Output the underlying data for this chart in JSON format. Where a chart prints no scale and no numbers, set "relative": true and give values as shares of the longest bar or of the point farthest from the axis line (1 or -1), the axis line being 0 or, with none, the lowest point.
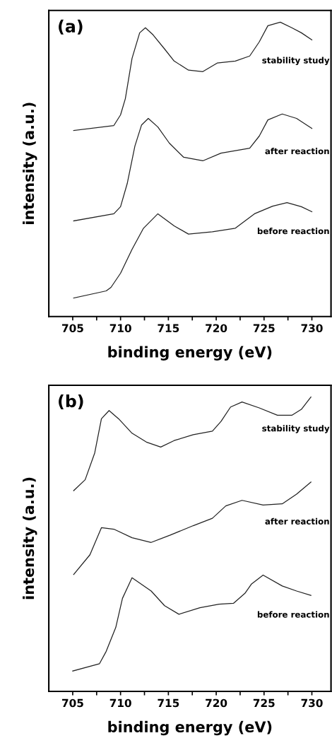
{
  "chart_data": [
    {
      "type": "line",
      "title": "(a)",
      "xlabel": "binding energy (eV)",
      "ylabel": "intensity (a.u.)",
      "relative": true,
      "xlim": [
        702.5,
        732
      ],
      "xticks": [
        705,
        {
          "value": 707.5,
          "label": null
        },
        710,
        {
          "value": 712.5,
          "label": null
        },
        715,
        {
          "value": 717.5,
          "label": null
        },
        720,
        {
          "value": 722.5,
          "label": null
        },
        725,
        {
          "value": 727.5,
          "label": null
        },
        730
      ],
      "series": [
        {
          "name": "stability study",
          "color": "#222222",
          "x": [
            705.1,
            709.3,
            710.0,
            710.5,
            711.2,
            712.0,
            712.6,
            713.4,
            714.6,
            715.6,
            717.1,
            718.6,
            720.1,
            722.0,
            723.5,
            724.5,
            725.4,
            726.7,
            727.9,
            728.9,
            730.0
          ],
          "values": [
            0.632,
            0.649,
            0.685,
            0.74,
            0.877,
            0.964,
            0.981,
            0.957,
            0.909,
            0.868,
            0.837,
            0.832,
            0.861,
            0.868,
            0.885,
            0.933,
            0.988,
            1.0,
            0.981,
            0.964,
            0.94
          ]
        },
        {
          "name": "after reaction",
          "color": "#222222",
          "x": [
            705.1,
            709.3,
            710.0,
            710.7,
            711.5,
            712.2,
            712.9,
            713.9,
            715.1,
            716.6,
            718.6,
            720.5,
            723.5,
            724.5,
            725.4,
            726.9,
            728.4,
            730.0
          ],
          "values": [
            0.325,
            0.349,
            0.373,
            0.452,
            0.579,
            0.651,
            0.673,
            0.644,
            0.589,
            0.541,
            0.529,
            0.555,
            0.572,
            0.613,
            0.668,
            0.688,
            0.673,
            0.639
          ]
        },
        {
          "name": "before reaction",
          "color": "#222222",
          "x": [
            705.1,
            708.5,
            709.0,
            710.0,
            711.2,
            712.4,
            713.9,
            715.6,
            717.1,
            719.6,
            722.0,
            724.0,
            725.9,
            727.4,
            728.9,
            730.0
          ],
          "values": [
            0.063,
            0.087,
            0.099,
            0.147,
            0.228,
            0.3,
            0.349,
            0.308,
            0.28,
            0.288,
            0.3,
            0.349,
            0.375,
            0.387,
            0.373,
            0.356
          ]
        }
      ]
    },
    {
      "type": "line",
      "title": "(b)",
      "xlabel": "binding energy (eV)",
      "ylabel": "intensity (a.u.)",
      "relative": true,
      "xlim": [
        702.5,
        732
      ],
      "xticks": [
        705,
        {
          "value": 707.5,
          "label": null
        },
        710,
        {
          "value": 712.5,
          "label": null
        },
        715,
        {
          "value": 717.5,
          "label": null
        },
        720,
        {
          "value": 722.5,
          "label": null
        },
        725,
        {
          "value": 727.5,
          "label": null
        },
        730
      ],
      "series": [
        {
          "name": "stability study",
          "color": "#222222",
          "x": [
            705.1,
            706.3,
            707.3,
            708.0,
            708.8,
            709.8,
            711.2,
            712.7,
            714.2,
            715.6,
            717.6,
            719.6,
            720.5,
            721.5,
            722.7,
            724.5,
            726.4,
            727.9,
            728.9,
            729.9
          ],
          "values": [
            0.682,
            0.719,
            0.81,
            0.926,
            0.954,
            0.926,
            0.877,
            0.847,
            0.83,
            0.852,
            0.872,
            0.884,
            0.917,
            0.966,
            0.983,
            0.963,
            0.938,
            0.938,
            0.958,
            1.0
          ]
        },
        {
          "name": "after reaction",
          "color": "#222222",
          "x": [
            705.1,
            706.8,
            708.0,
            709.3,
            711.2,
            713.2,
            715.2,
            717.6,
            719.6,
            721.0,
            722.7,
            724.9,
            726.9,
            728.4,
            729.9
          ],
          "values": [
            0.397,
            0.464,
            0.556,
            0.551,
            0.522,
            0.506,
            0.531,
            0.563,
            0.588,
            0.63,
            0.649,
            0.633,
            0.637,
            0.67,
            0.711
          ]
        },
        {
          "name": "before reaction",
          "color": "#222222",
          "x": [
            705.0,
            707.8,
            708.5,
            709.5,
            710.2,
            710.9,
            711.2,
            713.2,
            714.6,
            716.1,
            718.3,
            720.3,
            721.8,
            723.0,
            723.7,
            724.9,
            726.9,
            728.4,
            729.9
          ],
          "values": [
            0.069,
            0.094,
            0.136,
            0.217,
            0.316,
            0.365,
            0.386,
            0.341,
            0.291,
            0.262,
            0.284,
            0.296,
            0.299,
            0.333,
            0.365,
            0.395,
            0.358,
            0.341,
            0.326
          ]
        }
      ]
    }
  ]
}
